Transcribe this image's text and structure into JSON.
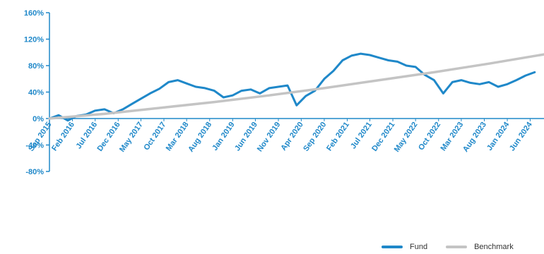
{
  "chart_data": {
    "type": "line",
    "title": "",
    "xlabel": "",
    "ylabel": "",
    "ylim": [
      -80,
      160
    ],
    "y_ticks": [
      160,
      120,
      80,
      40,
      0,
      -40,
      -80
    ],
    "y_tick_labels": [
      "160%",
      "120%",
      "80%",
      "40%",
      "0%",
      "-40%",
      "-80%"
    ],
    "x_ticks": [
      "Sep 2015",
      "Feb 2016",
      "Jul 2016",
      "Dec 2016",
      "May 2017",
      "Oct 2017",
      "Mar 2018",
      "Aug 2018",
      "Jan 2019",
      "Jun 2019",
      "Nov 2019",
      "Apr 2020",
      "Sep 2020",
      "Feb 2021",
      "Jul 2021",
      "Dec 2021",
      "May 2022",
      "Oct 2022",
      "Mar 2023",
      "Aug 2023",
      "Jan 2024",
      "Jun 2024"
    ],
    "grid": false,
    "legend_placement": "bottom-right",
    "colors": {
      "Fund": "#1f88c9",
      "Benchmark": "#c4c4c4",
      "axis": "#1f88c9",
      "tick_text": "#1f88c9"
    },
    "series": [
      {
        "name": "Fund",
        "x": [
          "2015-09",
          "2015-11",
          "2016-01",
          "2016-03",
          "2016-05",
          "2016-07",
          "2016-09",
          "2016-11",
          "2017-01",
          "2017-03",
          "2017-05",
          "2017-07",
          "2017-09",
          "2017-11",
          "2018-01",
          "2018-03",
          "2018-05",
          "2018-07",
          "2018-09",
          "2018-11",
          "2019-01",
          "2019-03",
          "2019-05",
          "2019-07",
          "2019-09",
          "2019-11",
          "2020-01",
          "2020-03",
          "2020-05",
          "2020-07",
          "2020-09",
          "2020-11",
          "2021-01",
          "2021-03",
          "2021-05",
          "2021-07",
          "2021-09",
          "2021-11",
          "2022-01",
          "2022-03",
          "2022-05",
          "2022-07",
          "2022-09",
          "2022-11",
          "2023-01",
          "2023-03",
          "2023-05",
          "2023-07",
          "2023-09",
          "2023-11",
          "2024-01",
          "2024-03",
          "2024-05",
          "2024-07"
        ],
        "values": [
          0,
          5,
          -3,
          4,
          6,
          12,
          14,
          8,
          14,
          22,
          30,
          38,
          45,
          55,
          58,
          53,
          48,
          46,
          42,
          32,
          35,
          42,
          44,
          38,
          46,
          48,
          50,
          20,
          34,
          42,
          60,
          72,
          88,
          95,
          98,
          96,
          92,
          88,
          86,
          80,
          78,
          66,
          58,
          38,
          55,
          58,
          54,
          52,
          55,
          48,
          52,
          58,
          65,
          70
        ]
      },
      {
        "name": "Benchmark",
        "x": [
          "2015-09",
          "2016-09",
          "2017-09",
          "2018-09",
          "2019-09",
          "2020-09",
          "2021-09",
          "2022-09",
          "2023-09",
          "2024-09"
        ],
        "values": [
          0,
          7,
          16,
          25,
          35,
          46,
          58,
          70,
          83,
          97
        ]
      }
    ]
  }
}
